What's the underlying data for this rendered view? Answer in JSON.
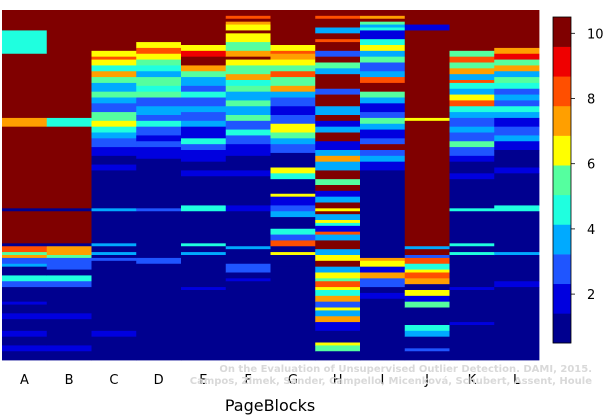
{
  "chart_data": {
    "type": "heatmap",
    "xlabel": "PageBlocks",
    "categories": [
      "A",
      "B",
      "C",
      "D",
      "E",
      "F",
      "G",
      "H",
      "I",
      "J",
      "K",
      "L"
    ],
    "rows": 120,
    "colorbar": {
      "min": 0.5,
      "max": 10.5,
      "ticks": [
        2,
        4,
        6,
        8,
        10
      ]
    },
    "columns": [
      [
        [
          0,
          10
        ],
        [
          6,
          10
        ],
        [
          7,
          4
        ],
        [
          15,
          10
        ],
        [
          37,
          7
        ],
        [
          40,
          10
        ],
        [
          68,
          0
        ],
        [
          69,
          10
        ],
        [
          80,
          0
        ],
        [
          81,
          8
        ],
        [
          83,
          5
        ],
        [
          84,
          7
        ],
        [
          85,
          2
        ],
        [
          87,
          3
        ],
        [
          88,
          0
        ],
        [
          91,
          4
        ],
        [
          93,
          2
        ],
        [
          95,
          0
        ],
        [
          100,
          1
        ],
        [
          101,
          0
        ],
        [
          104,
          1
        ],
        [
          106,
          0
        ],
        [
          110,
          1
        ],
        [
          112,
          0
        ],
        [
          115,
          1
        ],
        [
          117,
          0
        ]
      ],
      [
        [
          0,
          10
        ],
        [
          37,
          4
        ],
        [
          40,
          10
        ],
        [
          68,
          0
        ],
        [
          69,
          10
        ],
        [
          80,
          0
        ],
        [
          81,
          7
        ],
        [
          84,
          5
        ],
        [
          85,
          2
        ],
        [
          89,
          0
        ],
        [
          91,
          4
        ],
        [
          93,
          2
        ],
        [
          95,
          0
        ],
        [
          104,
          1
        ],
        [
          106,
          0
        ],
        [
          115,
          1
        ],
        [
          117,
          0
        ]
      ],
      [
        [
          0,
          10
        ],
        [
          14,
          6
        ],
        [
          16,
          8
        ],
        [
          17,
          6
        ],
        [
          19,
          4
        ],
        [
          21,
          7
        ],
        [
          23,
          5
        ],
        [
          25,
          3
        ],
        [
          28,
          5
        ],
        [
          30,
          3
        ],
        [
          32,
          2
        ],
        [
          35,
          5
        ],
        [
          38,
          6
        ],
        [
          40,
          4
        ],
        [
          42,
          3
        ],
        [
          44,
          2
        ],
        [
          47,
          1
        ],
        [
          50,
          0
        ],
        [
          53,
          1
        ],
        [
          55,
          0
        ],
        [
          68,
          3
        ],
        [
          69,
          0
        ],
        [
          80,
          3
        ],
        [
          81,
          0
        ],
        [
          83,
          3
        ],
        [
          84,
          0
        ],
        [
          85,
          2
        ],
        [
          86,
          0
        ],
        [
          88,
          0
        ],
        [
          110,
          1
        ],
        [
          112,
          0
        ]
      ],
      [
        [
          0,
          10
        ],
        [
          11,
          6
        ],
        [
          13,
          8
        ],
        [
          15,
          6
        ],
        [
          17,
          5
        ],
        [
          19,
          4
        ],
        [
          21,
          3
        ],
        [
          23,
          5
        ],
        [
          26,
          4
        ],
        [
          28,
          5
        ],
        [
          30,
          2
        ],
        [
          33,
          3
        ],
        [
          36,
          2
        ],
        [
          38,
          4
        ],
        [
          40,
          2
        ],
        [
          43,
          1
        ],
        [
          45,
          2
        ],
        [
          47,
          1
        ],
        [
          51,
          0
        ],
        [
          68,
          2
        ],
        [
          69,
          0
        ],
        [
          85,
          2
        ],
        [
          87,
          0
        ]
      ],
      [
        [
          0,
          10
        ],
        [
          12,
          6
        ],
        [
          14,
          9
        ],
        [
          16,
          10
        ],
        [
          19,
          7
        ],
        [
          21,
          5
        ],
        [
          23,
          3
        ],
        [
          26,
          2
        ],
        [
          28,
          4
        ],
        [
          30,
          2
        ],
        [
          33,
          3
        ],
        [
          35,
          2
        ],
        [
          38,
          3
        ],
        [
          40,
          1
        ],
        [
          44,
          4
        ],
        [
          46,
          2
        ],
        [
          48,
          1
        ],
        [
          52,
          0
        ],
        [
          55,
          1
        ],
        [
          57,
          0
        ],
        [
          67,
          4
        ],
        [
          69,
          0
        ],
        [
          80,
          4
        ],
        [
          81,
          0
        ],
        [
          83,
          3
        ],
        [
          84,
          0
        ],
        [
          95,
          1
        ],
        [
          96,
          0
        ]
      ],
      [
        [
          0,
          10
        ],
        [
          2,
          8
        ],
        [
          3,
          10
        ],
        [
          4,
          7
        ],
        [
          5,
          6
        ],
        [
          7,
          10
        ],
        [
          8,
          6
        ],
        [
          11,
          5
        ],
        [
          14,
          7
        ],
        [
          16,
          10
        ],
        [
          17,
          6
        ],
        [
          19,
          5
        ],
        [
          22,
          7
        ],
        [
          24,
          4
        ],
        [
          26,
          5
        ],
        [
          28,
          3
        ],
        [
          31,
          5
        ],
        [
          33,
          3
        ],
        [
          36,
          5
        ],
        [
          38,
          2
        ],
        [
          41,
          4
        ],
        [
          43,
          2
        ],
        [
          46,
          1
        ],
        [
          50,
          0
        ],
        [
          55,
          1
        ],
        [
          57,
          0
        ],
        [
          67,
          1
        ],
        [
          69,
          0
        ],
        [
          81,
          3
        ],
        [
          82,
          0
        ],
        [
          87,
          2
        ],
        [
          90,
          0
        ],
        [
          92,
          1
        ],
        [
          93,
          0
        ]
      ],
      [
        [
          0,
          10
        ],
        [
          12,
          6
        ],
        [
          14,
          8
        ],
        [
          15,
          7
        ],
        [
          17,
          6
        ],
        [
          19,
          5
        ],
        [
          21,
          8
        ],
        [
          23,
          5
        ],
        [
          26,
          7
        ],
        [
          28,
          3
        ],
        [
          30,
          2
        ],
        [
          33,
          1
        ],
        [
          36,
          2
        ],
        [
          39,
          6
        ],
        [
          42,
          5
        ],
        [
          44,
          3
        ],
        [
          46,
          2
        ],
        [
          49,
          0
        ],
        [
          54,
          6
        ],
        [
          56,
          4
        ],
        [
          58,
          0
        ],
        [
          63,
          6
        ],
        [
          64,
          1
        ],
        [
          67,
          2
        ],
        [
          69,
          3
        ],
        [
          71,
          0
        ],
        [
          75,
          4
        ],
        [
          77,
          2
        ],
        [
          79,
          8
        ],
        [
          81,
          0
        ],
        [
          83,
          6
        ],
        [
          84,
          0
        ],
        [
          88,
          0
        ]
      ],
      [
        [
          0,
          10
        ],
        [
          2,
          8
        ],
        [
          3,
          10
        ],
        [
          6,
          3
        ],
        [
          8,
          10
        ],
        [
          10,
          8
        ],
        [
          11,
          10
        ],
        [
          14,
          2
        ],
        [
          16,
          10
        ],
        [
          18,
          5
        ],
        [
          20,
          3
        ],
        [
          22,
          10
        ],
        [
          27,
          2
        ],
        [
          29,
          10
        ],
        [
          33,
          3
        ],
        [
          36,
          10
        ],
        [
          38,
          1
        ],
        [
          40,
          3
        ],
        [
          42,
          10
        ],
        [
          45,
          1
        ],
        [
          48,
          3
        ],
        [
          50,
          7
        ],
        [
          52,
          3
        ],
        [
          55,
          10
        ],
        [
          58,
          5
        ],
        [
          60,
          10
        ],
        [
          62,
          1
        ],
        [
          64,
          3
        ],
        [
          66,
          10
        ],
        [
          68,
          6
        ],
        [
          69,
          10
        ],
        [
          70,
          3
        ],
        [
          72,
          6
        ],
        [
          73,
          4
        ],
        [
          74,
          1
        ],
        [
          76,
          8
        ],
        [
          77,
          3
        ],
        [
          79,
          10
        ],
        [
          82,
          3
        ],
        [
          84,
          6
        ],
        [
          86,
          10
        ],
        [
          88,
          3
        ],
        [
          90,
          6
        ],
        [
          92,
          5
        ],
        [
          93,
          8
        ],
        [
          95,
          6
        ],
        [
          96,
          4
        ],
        [
          98,
          7
        ],
        [
          100,
          2
        ],
        [
          102,
          6
        ],
        [
          103,
          3
        ],
        [
          105,
          7
        ],
        [
          107,
          1
        ],
        [
          110,
          0
        ],
        [
          114,
          6
        ],
        [
          115,
          5
        ],
        [
          117,
          0
        ]
      ],
      [
        [
          0,
          10
        ],
        [
          2,
          7
        ],
        [
          3,
          10
        ],
        [
          4,
          5
        ],
        [
          5,
          3
        ],
        [
          6,
          4
        ],
        [
          7,
          1
        ],
        [
          10,
          4
        ],
        [
          12,
          6
        ],
        [
          14,
          3
        ],
        [
          16,
          5
        ],
        [
          18,
          2
        ],
        [
          21,
          3
        ],
        [
          23,
          8
        ],
        [
          25,
          10
        ],
        [
          28,
          5
        ],
        [
          30,
          3
        ],
        [
          32,
          1
        ],
        [
          35,
          2
        ],
        [
          37,
          5
        ],
        [
          39,
          3
        ],
        [
          41,
          1
        ],
        [
          44,
          2
        ],
        [
          46,
          10
        ],
        [
          48,
          2
        ],
        [
          50,
          3
        ],
        [
          52,
          1
        ],
        [
          55,
          0
        ],
        [
          85,
          7
        ],
        [
          86,
          6
        ],
        [
          88,
          1
        ],
        [
          90,
          7
        ],
        [
          92,
          2
        ],
        [
          95,
          0
        ],
        [
          97,
          1
        ],
        [
          99,
          0
        ]
      ],
      [
        [
          0,
          10
        ],
        [
          5,
          1
        ],
        [
          7,
          10
        ],
        [
          37,
          6
        ],
        [
          38,
          10
        ],
        [
          81,
          3
        ],
        [
          82,
          10
        ],
        [
          84,
          2
        ],
        [
          85,
          8
        ],
        [
          87,
          4
        ],
        [
          89,
          6
        ],
        [
          90,
          8
        ],
        [
          92,
          7
        ],
        [
          94,
          0
        ],
        [
          96,
          6
        ],
        [
          98,
          1
        ],
        [
          100,
          5
        ],
        [
          102,
          0
        ],
        [
          108,
          4
        ],
        [
          110,
          3
        ],
        [
          112,
          0
        ],
        [
          116,
          2
        ],
        [
          117,
          0
        ]
      ],
      [
        [
          0,
          10
        ],
        [
          14,
          5
        ],
        [
          16,
          8
        ],
        [
          18,
          5
        ],
        [
          20,
          7
        ],
        [
          22,
          3
        ],
        [
          24,
          8
        ],
        [
          25,
          4
        ],
        [
          27,
          3
        ],
        [
          29,
          6
        ],
        [
          31,
          8
        ],
        [
          33,
          4
        ],
        [
          35,
          3
        ],
        [
          37,
          2
        ],
        [
          40,
          3
        ],
        [
          42,
          2
        ],
        [
          45,
          5
        ],
        [
          47,
          2
        ],
        [
          50,
          1
        ],
        [
          52,
          0
        ],
        [
          56,
          1
        ],
        [
          58,
          0
        ],
        [
          68,
          4
        ],
        [
          69,
          0
        ],
        [
          80,
          4
        ],
        [
          81,
          0
        ],
        [
          83,
          4
        ],
        [
          84,
          0
        ],
        [
          95,
          1
        ],
        [
          96,
          0
        ],
        [
          107,
          1
        ],
        [
          108,
          0
        ]
      ],
      [
        [
          0,
          10
        ],
        [
          13,
          7
        ],
        [
          15,
          9
        ],
        [
          17,
          5
        ],
        [
          19,
          7
        ],
        [
          21,
          3
        ],
        [
          23,
          5
        ],
        [
          25,
          4
        ],
        [
          27,
          2
        ],
        [
          29,
          3
        ],
        [
          31,
          2
        ],
        [
          33,
          4
        ],
        [
          35,
          3
        ],
        [
          37,
          1
        ],
        [
          40,
          2
        ],
        [
          43,
          3
        ],
        [
          45,
          1
        ],
        [
          48,
          0
        ],
        [
          54,
          1
        ],
        [
          56,
          0
        ],
        [
          67,
          4
        ],
        [
          69,
          0
        ],
        [
          83,
          3
        ],
        [
          84,
          0
        ],
        [
          93,
          1
        ],
        [
          95,
          0
        ]
      ]
    ]
  },
  "credit_lines": [
    "On the Evaluation of Unsupervised Outlier Detection. DAMI, 2015.",
    "Campos, Zimek, Sander, Campello, Micenková, Schubert, Assent, Houle"
  ]
}
